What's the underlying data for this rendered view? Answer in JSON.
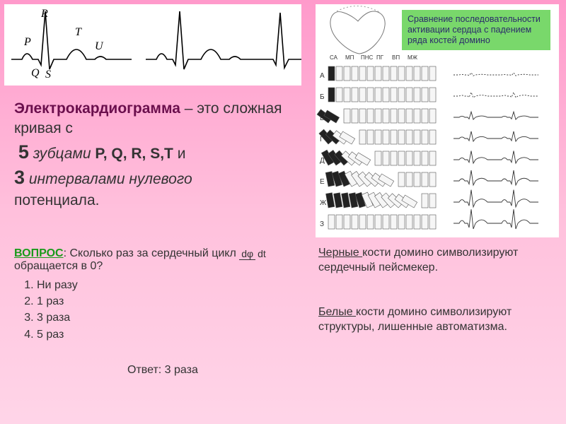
{
  "ecg": {
    "labels": {
      "P": "P",
      "Q": "Q",
      "R": "R",
      "S": "S",
      "T": "T",
      "U": "U"
    },
    "stroke": "#000000",
    "bg": "#ffffff",
    "label_font_size": 16
  },
  "green_box": {
    "text": "Сравнение последовательности активации сердца с падением ряда костей домино",
    "bg": "#79d86b",
    "fg": "#2b2b6b",
    "font_size": 12.5
  },
  "main": {
    "title": "Электрокардиограмма",
    "line1_a": " – это сложная кривая с",
    "five": "5",
    "waves_ital": "зубцами",
    "waves_letters": " P, Q, R, S,T ",
    "and": "и",
    "three": "3",
    "intervals_ital": "интервалами нулевого",
    "potential": "потенциала.",
    "title_color": "#6b0f4d",
    "font_size": 21
  },
  "question": {
    "label": "ВОПРОС",
    "text_before": ": Сколько раз за сердечный цикл ",
    "frac_top": "dφ",
    "frac_bot": "dt",
    "text_after": " обращается в 0?",
    "options": [
      "Ни разу",
      "1 раз",
      "3 раза",
      "5 раз"
    ],
    "answer_label": "Ответ: 3 раза",
    "vopros_color": "#1a9a1a",
    "font_size": 16
  },
  "right1": {
    "u": "Черные ",
    "rest": "кости домино символизируют сердечный пейсмекер.",
    "font_size": 16
  },
  "right2": {
    "u": "Белые ",
    "rest": "кости домино символизируют структуры, лишенные автоматизма.",
    "font_size": 16
  },
  "domino": {
    "rows": 8,
    "row_labels": [
      "А",
      "Б",
      "В",
      "Г",
      "Д",
      "Е",
      "Ж",
      "З"
    ],
    "sections": [
      "СА",
      "МП",
      "ПНС",
      "ПГ",
      "ВП",
      "МЖ"
    ],
    "black_per_row": [
      1,
      1,
      2,
      2,
      3,
      3,
      5,
      0
    ],
    "tiles_per_row": 14,
    "tile_fill_white": "#f6f6f6",
    "tile_fill_black": "#222222",
    "tile_stroke": "#555555",
    "toppled_frac_per_row": [
      0,
      0,
      0.14,
      0.3,
      0.45,
      0.64,
      0.85,
      0
    ],
    "bg": "#ffffff"
  }
}
